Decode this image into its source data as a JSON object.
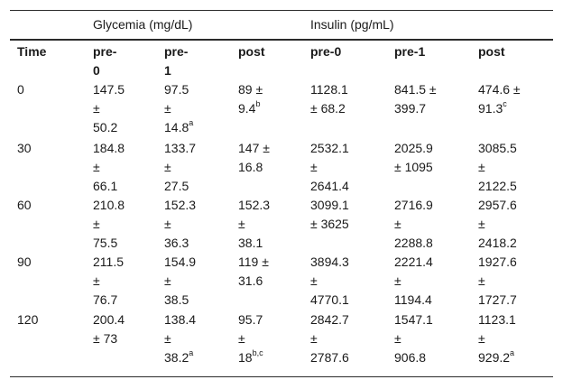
{
  "header": {
    "group_glycemia": "Glycemia (mg/dL)",
    "group_insulin": "Insulin (pg/mL)"
  },
  "columns": {
    "time": "Time",
    "g_pre0_line1": "pre-",
    "g_pre0_line2": "0",
    "g_pre1_line1": "pre-",
    "g_pre1_line2": "1",
    "g_post": "post",
    "i_pre0": "pre-0",
    "i_pre1": "pre-1",
    "i_post": "post"
  },
  "rows": [
    {
      "time": "0",
      "g_pre0": [
        "147.5",
        "±",
        "50.2"
      ],
      "g_pre1": [
        "97.5",
        "±",
        "14.8"
      ],
      "g_pre1_sup": "a",
      "g_post": [
        "89 ±",
        "9.4"
      ],
      "g_post_sup": "b",
      "i_pre0": [
        "1128.1",
        "± 68.2"
      ],
      "i_pre1": [
        "841.5 ±",
        "399.7"
      ],
      "i_post": [
        "474.6 ±",
        "91.3"
      ],
      "i_post_sup": "c"
    },
    {
      "time": "30",
      "g_pre0": [
        "184.8",
        "±",
        "66.1"
      ],
      "g_pre1": [
        "133.7",
        "±",
        "27.5"
      ],
      "g_post": [
        "147 ±",
        "16.8"
      ],
      "i_pre0": [
        "2532.1",
        "±",
        "2641.4"
      ],
      "i_pre1": [
        "2025.9",
        "± 1095"
      ],
      "i_post": [
        "3085.5",
        "±",
        "2122.5"
      ]
    },
    {
      "time": "60",
      "g_pre0": [
        "210.8",
        "±",
        "75.5"
      ],
      "g_pre1": [
        "152.3",
        "±",
        "36.3"
      ],
      "g_post": [
        "152.3",
        "±",
        "38.1"
      ],
      "i_pre0": [
        "3099.1",
        "± 3625"
      ],
      "i_pre1": [
        "2716.9",
        "±",
        "2288.8"
      ],
      "i_post": [
        "2957.6",
        "±",
        "2418.2"
      ]
    },
    {
      "time": "90",
      "g_pre0": [
        "211.5",
        "±",
        "76.7"
      ],
      "g_pre1": [
        "154.9",
        "±",
        "38.5"
      ],
      "g_post": [
        "119 ±",
        "31.6"
      ],
      "i_pre0": [
        "3894.3",
        "±",
        "4770.1"
      ],
      "i_pre1": [
        "2221.4",
        "±",
        "1194.4"
      ],
      "i_post": [
        "1927.6",
        "±",
        "1727.7"
      ]
    },
    {
      "time": "120",
      "g_pre0": [
        "200.4",
        "± 73"
      ],
      "g_pre1": [
        "138.4",
        "±",
        "38.2"
      ],
      "g_pre1_sup": "a",
      "g_post": [
        "95.7",
        "±",
        "18"
      ],
      "g_post_sup": "b,c",
      "i_pre0": [
        "2842.7",
        "±",
        "2787.6"
      ],
      "i_pre1": [
        "1547.1",
        "±",
        "906.8"
      ],
      "i_post": [
        "1123.1",
        "±",
        "929.2"
      ],
      "i_post_sup": "a"
    }
  ]
}
